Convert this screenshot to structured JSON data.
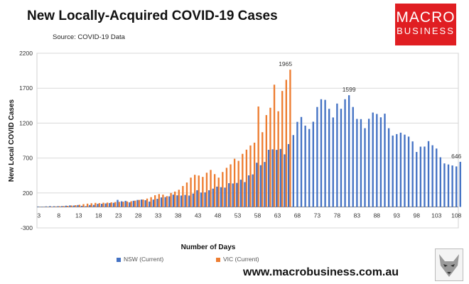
{
  "header": {
    "title": "New Locally-Acquired COVID-19 Cases",
    "source": "Source: COVID-19 Data"
  },
  "logo": {
    "line1": "MACRO",
    "line2": "BUSINESS"
  },
  "footer": {
    "url": "www.macrobusiness.com.au"
  },
  "colors": {
    "nsw": "#4472c4",
    "vic": "#ed7d31",
    "logo_bg": "#e01e22"
  },
  "chart_data": {
    "type": "bar",
    "xlabel": "Number of Days",
    "ylabel": "New Local COVID Cases",
    "ylim": [
      -300,
      2200
    ],
    "yticks": [
      -300,
      200,
      700,
      1200,
      1700,
      2200
    ],
    "xticks": [
      3,
      8,
      13,
      18,
      23,
      28,
      33,
      38,
      43,
      48,
      53,
      58,
      63,
      68,
      73,
      78,
      83,
      88,
      93,
      98,
      103,
      108
    ],
    "x_start": 3,
    "series": [
      {
        "name": "NSW (Current)",
        "values": [
          6,
          5,
          8,
          12,
          10,
          11,
          12,
          18,
          22,
          20,
          27,
          16,
          11,
          27,
          29,
          44,
          45,
          50,
          56,
          59,
          101,
          81,
          87,
          65,
          88,
          100,
          106,
          96,
          77,
          105,
          116,
          136,
          141,
          152,
          176,
          166,
          163,
          172,
          163,
          191,
          239,
          206,
          209,
          239,
          262,
          291,
          283,
          277,
          340,
          336,
          344,
          390,
          356,
          452,
          466,
          633,
          598,
          644,
          818,
          825,
          817,
          830,
          753,
          900,
          1029,
          1218,
          1288,
          1164,
          1116,
          1220,
          1431,
          1542,
          1533,
          1405,
          1281,
          1480,
          1405,
          1542,
          1599,
          1431,
          1260,
          1257,
          1127,
          1262,
          1351,
          1331,
          1283,
          1335,
          1127,
          1022,
          1043,
          1063,
          1035,
          1007,
          938,
          787,
          863,
          864,
          942,
          883,
          836,
          711,
          623,
          608,
          594,
          580,
          646
        ]
      },
      {
        "name": "VIC (Current)",
        "values": [
          1,
          2,
          3,
          5,
          7,
          10,
          12,
          15,
          20,
          25,
          31,
          40,
          47,
          53,
          58,
          55,
          60,
          62,
          66,
          70,
          72,
          75,
          78,
          82,
          90,
          100,
          106,
          120,
          140,
          168,
          184,
          176,
          155,
          200,
          220,
          246,
          300,
          350,
          420,
          460,
          450,
          430,
          490,
          530,
          470,
          420,
          500,
          560,
          610,
          690,
          660,
          760,
          820,
          880,
          920,
          1438,
          1070,
          1315,
          1420,
          1750,
          1370,
          1660,
          1820,
          1965
        ]
      }
    ],
    "annotations": [
      {
        "x": 65,
        "value": 1965,
        "label": "1965"
      },
      {
        "x": 81,
        "value": 1599,
        "label": "1599"
      },
      {
        "x": 108,
        "value": 646,
        "label": "646"
      }
    ]
  }
}
